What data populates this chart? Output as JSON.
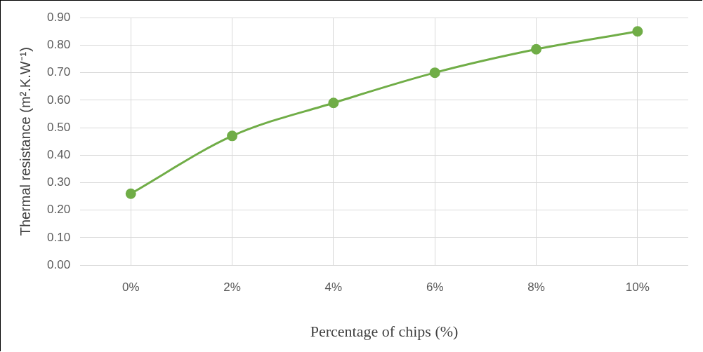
{
  "chart_data": {
    "type": "line",
    "xlabel": "Percentage of chips (%)",
    "ylabel": "Thermal resistance (m².K.W⁻¹)",
    "categories": [
      "0%",
      "2%",
      "4%",
      "6%",
      "8%",
      "10%"
    ],
    "series": [
      {
        "color": "#70ad47",
        "values": [
          0.26,
          0.47,
          0.59,
          0.7,
          0.785,
          0.85
        ]
      }
    ],
    "ylim": [
      0,
      0.9
    ],
    "yticks": [
      {
        "value": 0,
        "label": "0.00"
      },
      {
        "value": 0.1,
        "label": "0.10"
      },
      {
        "value": 0.2,
        "label": "0.20"
      },
      {
        "value": 0.3,
        "label": "0.30"
      },
      {
        "value": 0.4,
        "label": "0.40"
      },
      {
        "value": 0.5,
        "label": "0.50"
      },
      {
        "value": 0.6,
        "label": "0.60"
      },
      {
        "value": 0.7,
        "label": "0.70"
      },
      {
        "value": 0.8,
        "label": "0.80"
      },
      {
        "value": 0.9,
        "label": "0.90"
      }
    ],
    "grid": true,
    "legend": false,
    "marker": "circle",
    "line_style": "solid"
  }
}
